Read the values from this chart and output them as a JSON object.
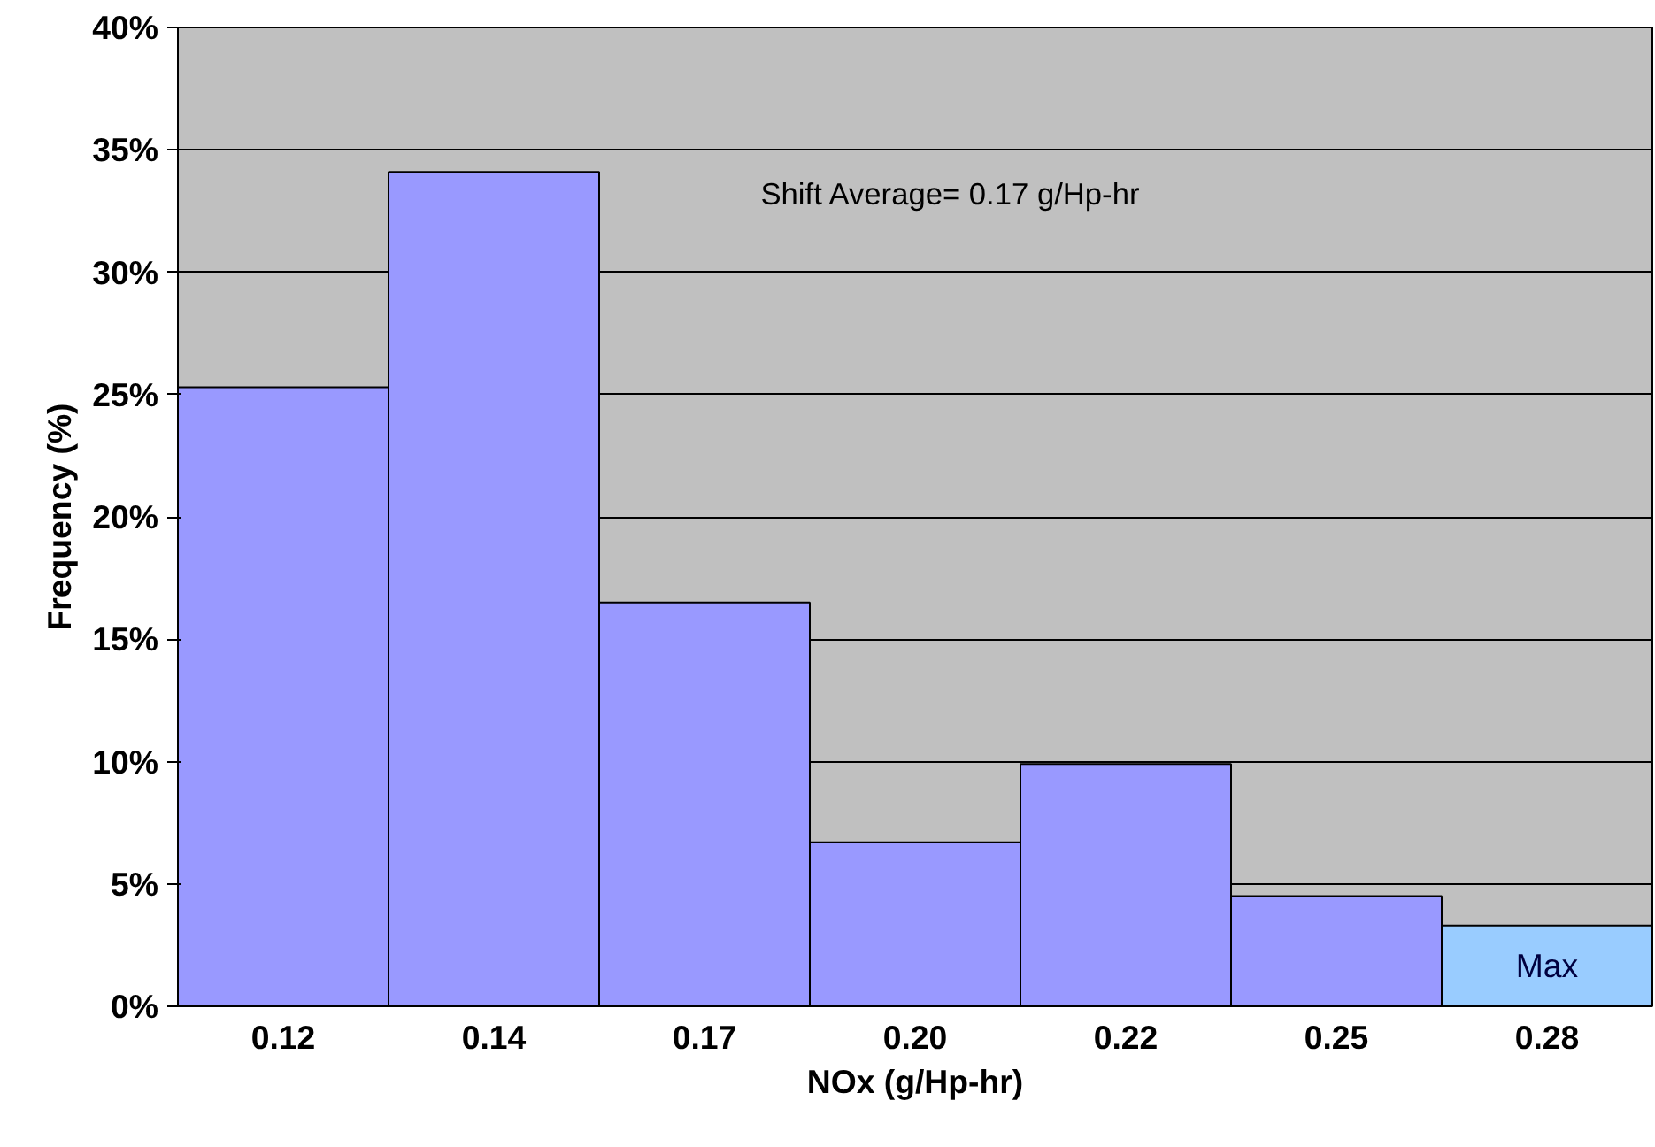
{
  "chart_data": {
    "type": "bar",
    "categories": [
      "0.12",
      "0.14",
      "0.17",
      "0.20",
      "0.22",
      "0.25",
      "0.28"
    ],
    "values": [
      25.3,
      34.1,
      16.5,
      6.7,
      9.9,
      4.5,
      3.3
    ],
    "colors": [
      "#9999ff",
      "#9999ff",
      "#9999ff",
      "#9999ff",
      "#9999ff",
      "#9999ff",
      "#99ccff"
    ],
    "xlabel": "NOx (g/Hp-hr)",
    "ylabel": "Frequency (%)",
    "ylim": [
      0,
      40
    ],
    "yticks": [
      {
        "value": 0,
        "label": "0%"
      },
      {
        "value": 5,
        "label": "5%"
      },
      {
        "value": 10,
        "label": "10%"
      },
      {
        "value": 15,
        "label": "15%"
      },
      {
        "value": 20,
        "label": "20%"
      },
      {
        "value": 25,
        "label": "25%"
      },
      {
        "value": 30,
        "label": "30%"
      },
      {
        "value": 35,
        "label": "35%"
      },
      {
        "value": 40,
        "label": "40%"
      }
    ],
    "grid": "y",
    "annotations": [
      "Shift Average= 0.17  g/Hp-hr",
      "Max"
    ]
  }
}
